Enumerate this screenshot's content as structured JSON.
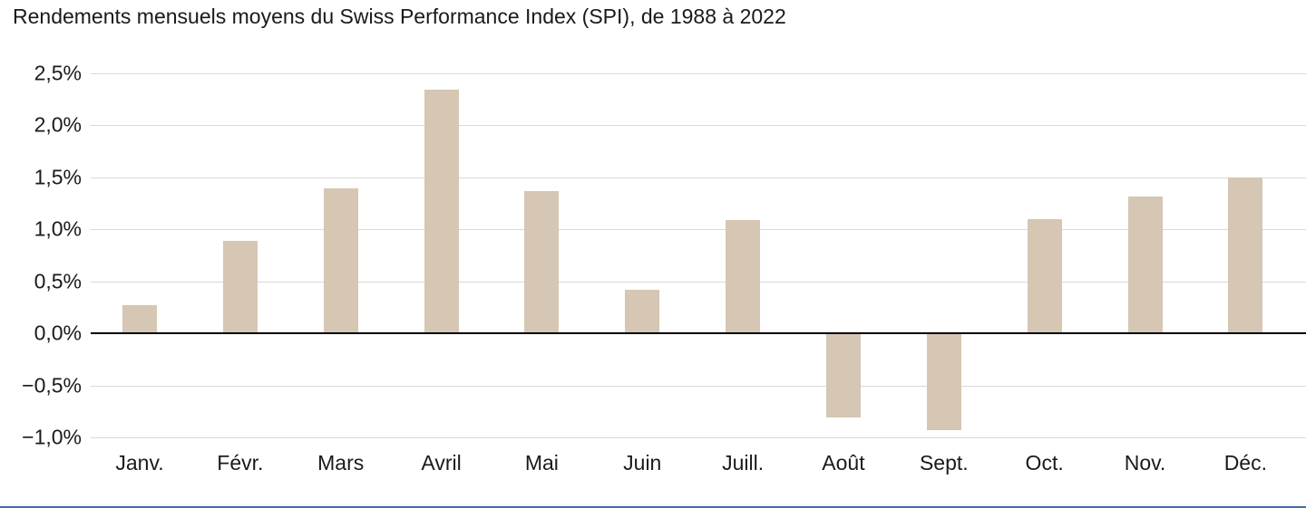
{
  "chart_data": {
    "type": "bar",
    "title": "Rendements mensuels moyens du Swiss Performance Index (SPI), de 1988 à 2022",
    "categories": [
      "Janv.",
      "Févr.",
      "Mars",
      "Avril",
      "Mai",
      "Juin",
      "Juill.",
      "Août",
      "Sept.",
      "Oct.",
      "Nov.",
      "Déc."
    ],
    "values": [
      0.27,
      0.89,
      1.39,
      2.34,
      1.37,
      0.42,
      1.09,
      -0.81,
      -0.93,
      1.1,
      1.32,
      1.5
    ],
    "xlabel": "",
    "ylabel": "",
    "unit": "%",
    "y_ticks": [
      "2,5%",
      "2,0%",
      "1,5%",
      "1,0%",
      "0,5%",
      "0,0%",
      "−0,5%",
      "−1,0%"
    ],
    "y_tick_values": [
      2.5,
      2.0,
      1.5,
      1.0,
      0.5,
      0.0,
      -0.5,
      -1.0
    ],
    "ylim": [
      -1.0,
      2.5
    ],
    "grid": true,
    "legend": "none",
    "bar_color": "#d5c7b3",
    "gridline_color": "#d9d9d9",
    "zero_line_color": "#000000",
    "text_color": "#1a1a1a"
  },
  "footer": {
    "accent_line_color": "#4a69ad"
  }
}
